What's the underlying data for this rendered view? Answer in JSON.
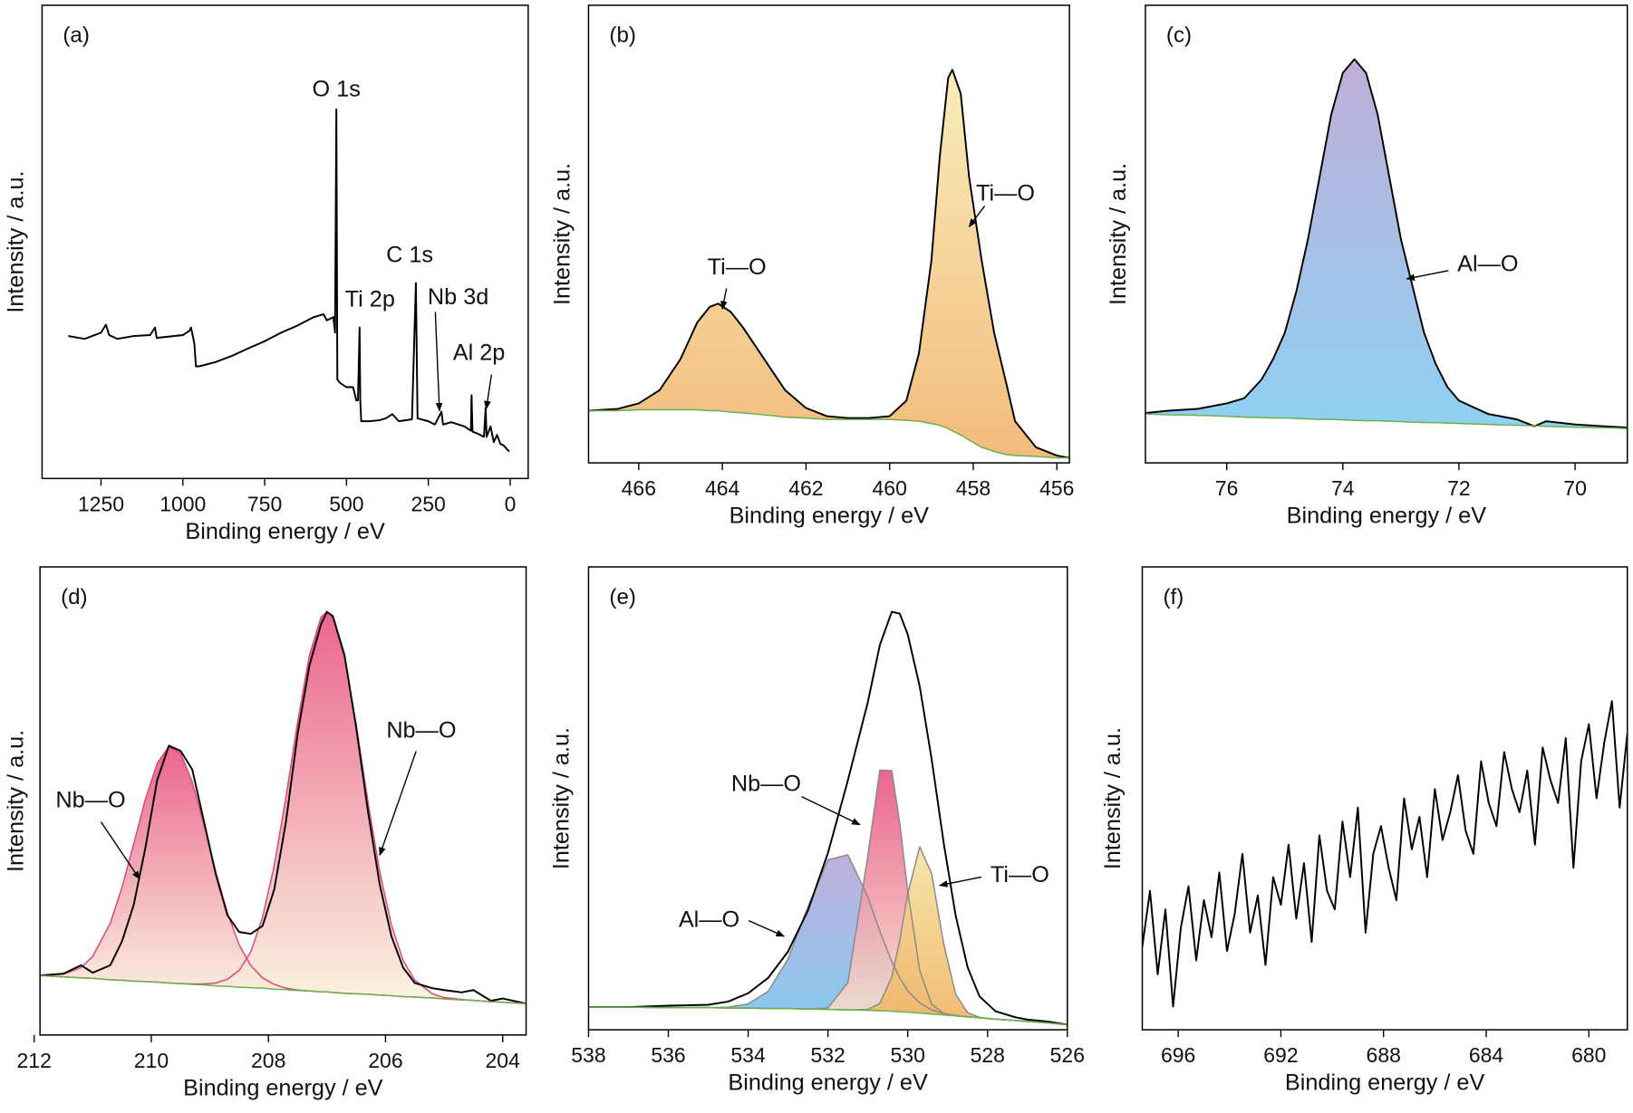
{
  "chart_data": [
    {
      "type": "line",
      "panel_label": "(a)",
      "xlabel": "Binding energy / eV",
      "ylabel": "Intensity / a.u.",
      "xlim": [
        1430,
        -55
      ],
      "ylim": [
        0,
        100
      ],
      "xticks": [
        1250,
        1000,
        750,
        500,
        250,
        0
      ],
      "x": [
        1350,
        1300,
        1250,
        1235,
        1225,
        1200,
        1150,
        1100,
        1085,
        1080,
        1000,
        980,
        975,
        965,
        960,
        950,
        900,
        850,
        800,
        750,
        700,
        650,
        600,
        570,
        560,
        540,
        535,
        531,
        528,
        520,
        500,
        480,
        470,
        465,
        460,
        458,
        455,
        430,
        400,
        380,
        360,
        340,
        300,
        288,
        283,
        250,
        230,
        210,
        205,
        180,
        140,
        120,
        118,
        115,
        100,
        80,
        75,
        72,
        60,
        50,
        40,
        30,
        20,
        10,
        3
      ],
      "series": [
        {
          "color": "#000000",
          "values": [
            30.1,
            29.5,
            30.8,
            32.5,
            30.3,
            29.5,
            30.1,
            30.3,
            31.9,
            29.7,
            30.3,
            31.2,
            31.9,
            28.6,
            23.7,
            23.7,
            24.6,
            25.9,
            27.5,
            29.0,
            30.8,
            32.3,
            34.1,
            34.7,
            33.4,
            34.1,
            30.8,
            78.0,
            20.9,
            20.2,
            19.3,
            19.3,
            16.5,
            16.5,
            31.9,
            16.5,
            12.1,
            12.1,
            12.3,
            12.7,
            13.6,
            12.1,
            12.5,
            41.3,
            12.7,
            12.1,
            11.4,
            14.1,
            11.4,
            11.9,
            11.0,
            10.1,
            17.6,
            9.9,
            9.5,
            8.8,
            14.9,
            8.8,
            11.0,
            7.7,
            9.2,
            7.3,
            7.0,
            6.2,
            5.7
          ]
        }
      ],
      "annotations": [
        {
          "text": "O 1s",
          "x": 531,
          "y": 78.0
        },
        {
          "text": "Ti 2p",
          "x": 460,
          "y": 31.9
        },
        {
          "text": "C 1s",
          "x": 288,
          "y": 41.3
        },
        {
          "text": "Nb 3d",
          "x": 216,
          "y": 14.3
        },
        {
          "text": "Al 2p",
          "x": 73,
          "y": 14.7
        }
      ]
    },
    {
      "type": "line",
      "panel_label": "(b)",
      "xlabel": "Binding energy / eV",
      "ylabel": "Intensity / a.u.",
      "xlim": [
        467.2,
        455.7
      ],
      "ylim": [
        0,
        100
      ],
      "xticks": [
        466,
        464,
        462,
        460,
        458,
        456
      ],
      "x": [
        467.2,
        466.5,
        466,
        465.5,
        465,
        464.6,
        464.3,
        464.1,
        463.8,
        463.5,
        463,
        462.5,
        462,
        461.5,
        461,
        460.5,
        460,
        459.6,
        459.3,
        459,
        458.8,
        458.6,
        458.5,
        458.3,
        458.1,
        457.8,
        457.5,
        457.2,
        457,
        456.5,
        456,
        455.7
      ],
      "series": [
        {
          "color": "#000000",
          "fill": [
            "#f7eab0",
            "#f1b26a"
          ],
          "values": [
            11.4,
            11.8,
            13.0,
            15.9,
            22.7,
            30.7,
            34.1,
            34.8,
            33.0,
            29.5,
            22.7,
            15.9,
            12.0,
            10.2,
            9.8,
            9.8,
            10.2,
            13.6,
            23.9,
            44.3,
            67.0,
            84.1,
            85.9,
            80.7,
            62.5,
            44.3,
            28.4,
            17.0,
            9.1,
            3.4,
            1.6,
            1.1
          ]
        },
        {
          "color": "#6ab04c",
          "values": [
            11.4,
            11.4,
            11.6,
            11.6,
            11.6,
            11.6,
            11.4,
            11.4,
            11.1,
            10.9,
            10.5,
            10.0,
            9.8,
            9.5,
            9.5,
            9.5,
            9.5,
            9.3,
            9.1,
            8.6,
            8.2,
            7.5,
            7.0,
            6.1,
            5.0,
            3.4,
            2.5,
            1.8,
            1.6,
            1.4,
            1.1,
            1.1
          ]
        }
      ],
      "annotations": [
        {
          "text": "Ti—O",
          "x": 464.0,
          "y": 33.6
        },
        {
          "text": "Ti—O",
          "x": 458.1,
          "y": 51.6
        }
      ]
    },
    {
      "type": "line",
      "panel_label": "(c)",
      "xlabel": "Binding energy / eV",
      "ylabel": "Intensity / a.u.",
      "xlim": [
        77.4,
        69.1
      ],
      "ylim": [
        0,
        100
      ],
      "xticks": [
        76,
        74,
        72,
        70
      ],
      "x": [
        77.4,
        77,
        76.5,
        76,
        75.7,
        75.4,
        75.2,
        75,
        74.8,
        74.6,
        74.4,
        74.2,
        74,
        73.8,
        73.6,
        73.4,
        73.2,
        73,
        72.8,
        72.6,
        72.4,
        72.2,
        72,
        71.5,
        71,
        70.7,
        70.5,
        70,
        69.5,
        69.1
      ],
      "series": [
        {
          "color": "#000000",
          "fill": [
            "#b7a3d4",
            "#7fcaf0"
          ],
          "values": [
            10.9,
            11.4,
            11.8,
            13.0,
            14.1,
            18.2,
            22.7,
            28.4,
            37.5,
            48.9,
            62.5,
            76.1,
            85.2,
            88.2,
            85.2,
            76.1,
            62.5,
            48.9,
            38.6,
            28.4,
            21.6,
            16.6,
            13.6,
            10.7,
            9.5,
            8.0,
            9.1,
            8.4,
            8.0,
            7.7
          ]
        },
        {
          "color": "#6ab04c",
          "values": [
            10.7,
            10.5,
            10.4,
            10.2,
            10.0,
            9.9,
            9.8,
            9.8,
            9.7,
            9.6,
            9.5,
            9.5,
            9.4,
            9.3,
            9.2,
            9.2,
            9.1,
            9.0,
            8.9,
            8.8,
            8.8,
            8.7,
            8.6,
            8.4,
            8.2,
            8.1,
            8.0,
            7.8,
            7.7,
            7.5
          ]
        }
      ],
      "annotations": [
        {
          "text": "Al—O",
          "x": 72.9,
          "y": 40.2
        }
      ]
    },
    {
      "type": "line",
      "panel_label": "(d)",
      "xlabel": "Binding energy / eV",
      "ylabel": "Intensity / a.u.",
      "xlim": [
        211.9,
        203.6
      ],
      "ylim": [
        0,
        100
      ],
      "xticks": [
        212,
        210,
        208,
        206,
        204
      ],
      "x": [
        211.9,
        211.5,
        211.2,
        211,
        210.7,
        210.5,
        210.3,
        210.1,
        209.9,
        209.7,
        209.5,
        209.3,
        209.1,
        208.9,
        208.7,
        208.5,
        208.3,
        208.1,
        207.9,
        207.7,
        207.5,
        207.3,
        207.1,
        207,
        206.9,
        206.7,
        206.5,
        206.3,
        206.1,
        205.9,
        205.7,
        205.5,
        205.2,
        205,
        204.7,
        204.5,
        204.2,
        204,
        203.6
      ],
      "series": [
        {
          "color": "#e0457b",
          "fill": [
            "#e8507f",
            "#faf3dc"
          ],
          "values": [
            12.8,
            13.0,
            14.4,
            16.8,
            23.9,
            31.5,
            40.8,
            50.4,
            58.0,
            61.6,
            60.2,
            54.0,
            44.9,
            34.9,
            26.1,
            19.3,
            14.8,
            12.2,
            10.8,
            10.0,
            9.6,
            9.4,
            9.2,
            9.2,
            9.1,
            8.9,
            8.8,
            8.7,
            8.5,
            8.4,
            8.2,
            8.1,
            7.9,
            7.7,
            7.5,
            7.4,
            7.1,
            7.0,
            6.7
          ]
        },
        {
          "color": "#e0457b",
          "fill": [
            "#e8507f",
            "#faf3dc"
          ],
          "values": [
            12.7,
            12.4,
            12.2,
            12.1,
            11.8,
            11.7,
            11.5,
            11.4,
            11.3,
            11.1,
            11.0,
            10.9,
            10.9,
            11.1,
            11.9,
            13.8,
            17.8,
            25.1,
            36.2,
            50.8,
            66.9,
            81.1,
            89.3,
            90.4,
            89.2,
            80.6,
            66.2,
            49.8,
            34.9,
            23.5,
            15.9,
            11.7,
            8.8,
            8.0,
            7.6,
            7.4,
            7.1,
            7.0,
            6.7
          ]
        },
        {
          "color": "#000000",
          "values": [
            12.7,
            13.1,
            14.9,
            13.3,
            14.9,
            20.0,
            27.8,
            40.0,
            54.4,
            61.8,
            60.7,
            56.7,
            45.6,
            34.4,
            25.6,
            22.0,
            21.6,
            23.3,
            31.1,
            45.6,
            64.4,
            78.9,
            87.8,
            90.4,
            89.5,
            81.1,
            65.6,
            47.8,
            32.2,
            21.1,
            14.4,
            11.1,
            10.0,
            9.6,
            9.1,
            9.6,
            7.3,
            7.8,
            6.7
          ]
        },
        {
          "color": "#6ab04c",
          "values": [
            12.7,
            12.4,
            12.2,
            12.1,
            11.8,
            11.7,
            11.5,
            11.4,
            11.3,
            11.1,
            11.0,
            10.8,
            10.7,
            10.5,
            10.4,
            10.2,
            10.1,
            10.0,
            9.8,
            9.7,
            9.5,
            9.4,
            9.2,
            9.2,
            9.1,
            8.9,
            8.8,
            8.7,
            8.5,
            8.4,
            8.2,
            8.1,
            7.9,
            7.7,
            7.5,
            7.4,
            7.1,
            7.0,
            6.7
          ]
        }
      ],
      "annotations": [
        {
          "text": "Nb—O",
          "x": 206.1,
          "y": 38.4
        },
        {
          "text": "Nb—O",
          "x": 210.2,
          "y": 33.3
        }
      ]
    },
    {
      "type": "line",
      "panel_label": "(e)",
      "xlabel": "Binding energy / eV",
      "ylabel": "Intensity / a.u.",
      "xlim": [
        538,
        526
      ],
      "ylim": [
        0,
        100
      ],
      "xticks": [
        538,
        536,
        534,
        532,
        530,
        528,
        526
      ],
      "x": [
        538,
        537,
        536,
        535,
        534.5,
        534,
        533.5,
        533,
        532.5,
        532,
        531.5,
        531,
        530.7,
        530.4,
        530.2,
        530,
        529.7,
        529.4,
        529.1,
        528.8,
        528.5,
        528.2,
        527.8,
        527.3,
        527,
        526.5,
        526
      ],
      "series": [
        {
          "color": "#8a8a8a",
          "fill": [
            "#b9a5d8",
            "#74c3ee"
          ],
          "values": [
            4.9,
            4.9,
            4.8,
            4.8,
            4.9,
            5.6,
            8.3,
            15.3,
            26.6,
            36.7,
            37.8,
            28.7,
            21.3,
            14.7,
            11.2,
            8.4,
            5.8,
            4.3,
            3.5,
            3.1,
            2.8,
            2.6,
            2.3,
            2.0,
            1.8,
            1.5,
            1.1
          ]
        },
        {
          "color": "#8a8a8a",
          "fill": [
            "#e8507f",
            "#f8e6cf"
          ],
          "values": [
            4.9,
            4.9,
            4.8,
            4.8,
            4.7,
            4.7,
            4.6,
            4.6,
            4.5,
            4.7,
            10.2,
            37.6,
            56.1,
            56.0,
            44.6,
            29.9,
            12.8,
            5.5,
            3.5,
            3.0,
            2.8,
            2.6,
            2.3,
            2.0,
            1.8,
            1.5,
            1.1
          ]
        },
        {
          "color": "#8a8a8a",
          "fill": [
            "#f5e2a0",
            "#efb25e"
          ],
          "values": [
            4.9,
            4.9,
            4.8,
            4.8,
            4.7,
            4.7,
            4.6,
            4.6,
            4.5,
            4.4,
            4.3,
            4.4,
            5.7,
            11.4,
            19.3,
            29.4,
            39.5,
            33.7,
            18.6,
            7.7,
            3.7,
            2.7,
            2.3,
            2.0,
            1.8,
            1.5,
            1.1
          ]
        },
        {
          "color": "#000000",
          "values": [
            4.9,
            4.9,
            5.2,
            5.4,
            6.1,
            7.9,
            11.2,
            16.9,
            25.8,
            38.2,
            53.9,
            70.8,
            83.1,
            90.3,
            89.9,
            85.4,
            74.2,
            58.4,
            40.4,
            24.7,
            13.5,
            7.2,
            4.0,
            2.7,
            2.2,
            1.8,
            1.1
          ]
        },
        {
          "color": "#6ab04c",
          "values": [
            4.9,
            4.9,
            4.8,
            4.8,
            4.7,
            4.7,
            4.6,
            4.6,
            4.5,
            4.4,
            4.3,
            4.2,
            4.1,
            4.0,
            3.9,
            3.8,
            3.6,
            3.4,
            3.2,
            3.0,
            2.8,
            2.6,
            2.3,
            2.0,
            1.8,
            1.5,
            1.1
          ]
        }
      ],
      "annotations": [
        {
          "text": "Nb—O",
          "x": 531.2,
          "y": 44.3
        },
        {
          "text": "Ti—O",
          "x": 529.2,
          "y": 31.2
        },
        {
          "text": "Al—O",
          "x": 533.1,
          "y": 20.2
        }
      ]
    },
    {
      "type": "line",
      "panel_label": "(f)",
      "xlabel": "Binding energy / eV",
      "ylabel": "Intensity / a.u.",
      "xlim": [
        697.4,
        678.5
      ],
      "ylim": [
        0,
        100
      ],
      "xticks": [
        696,
        692,
        688,
        684,
        680
      ],
      "x": [
        697.4,
        697.1,
        696.8,
        696.5,
        696.2,
        695.9,
        695.6,
        695.3,
        695.0,
        694.7,
        694.4,
        694.1,
        693.8,
        693.5,
        693.2,
        692.9,
        692.6,
        692.3,
        692.0,
        691.7,
        691.4,
        691.1,
        690.8,
        690.5,
        690.2,
        689.9,
        689.6,
        689.3,
        689.0,
        688.7,
        688.4,
        688.1,
        687.8,
        687.5,
        687.2,
        686.9,
        686.6,
        686.3,
        686.0,
        685.7,
        685.4,
        685.1,
        684.8,
        684.5,
        684.2,
        683.9,
        683.6,
        683.3,
        683.0,
        682.7,
        682.4,
        682.1,
        681.8,
        681.5,
        681.2,
        680.9,
        680.6,
        680.3,
        680.0,
        679.7,
        679.4,
        679.1,
        678.8,
        678.5
      ],
      "series": [
        {
          "color": "#000000",
          "values": [
            18,
            30,
            12,
            26,
            5,
            22,
            31,
            15,
            28,
            20,
            34,
            17,
            25,
            38,
            21,
            29,
            14,
            33,
            27,
            40,
            24,
            36,
            19,
            42,
            30,
            26,
            45,
            33,
            48,
            21,
            38,
            44,
            35,
            28,
            50,
            39,
            46,
            33,
            52,
            41,
            47,
            55,
            43,
            38,
            58,
            49,
            44,
            60,
            52,
            47,
            56,
            40,
            61,
            54,
            49,
            63,
            35,
            58,
            66,
            50,
            62,
            71,
            48,
            64
          ]
        }
      ],
      "annotations": []
    }
  ]
}
